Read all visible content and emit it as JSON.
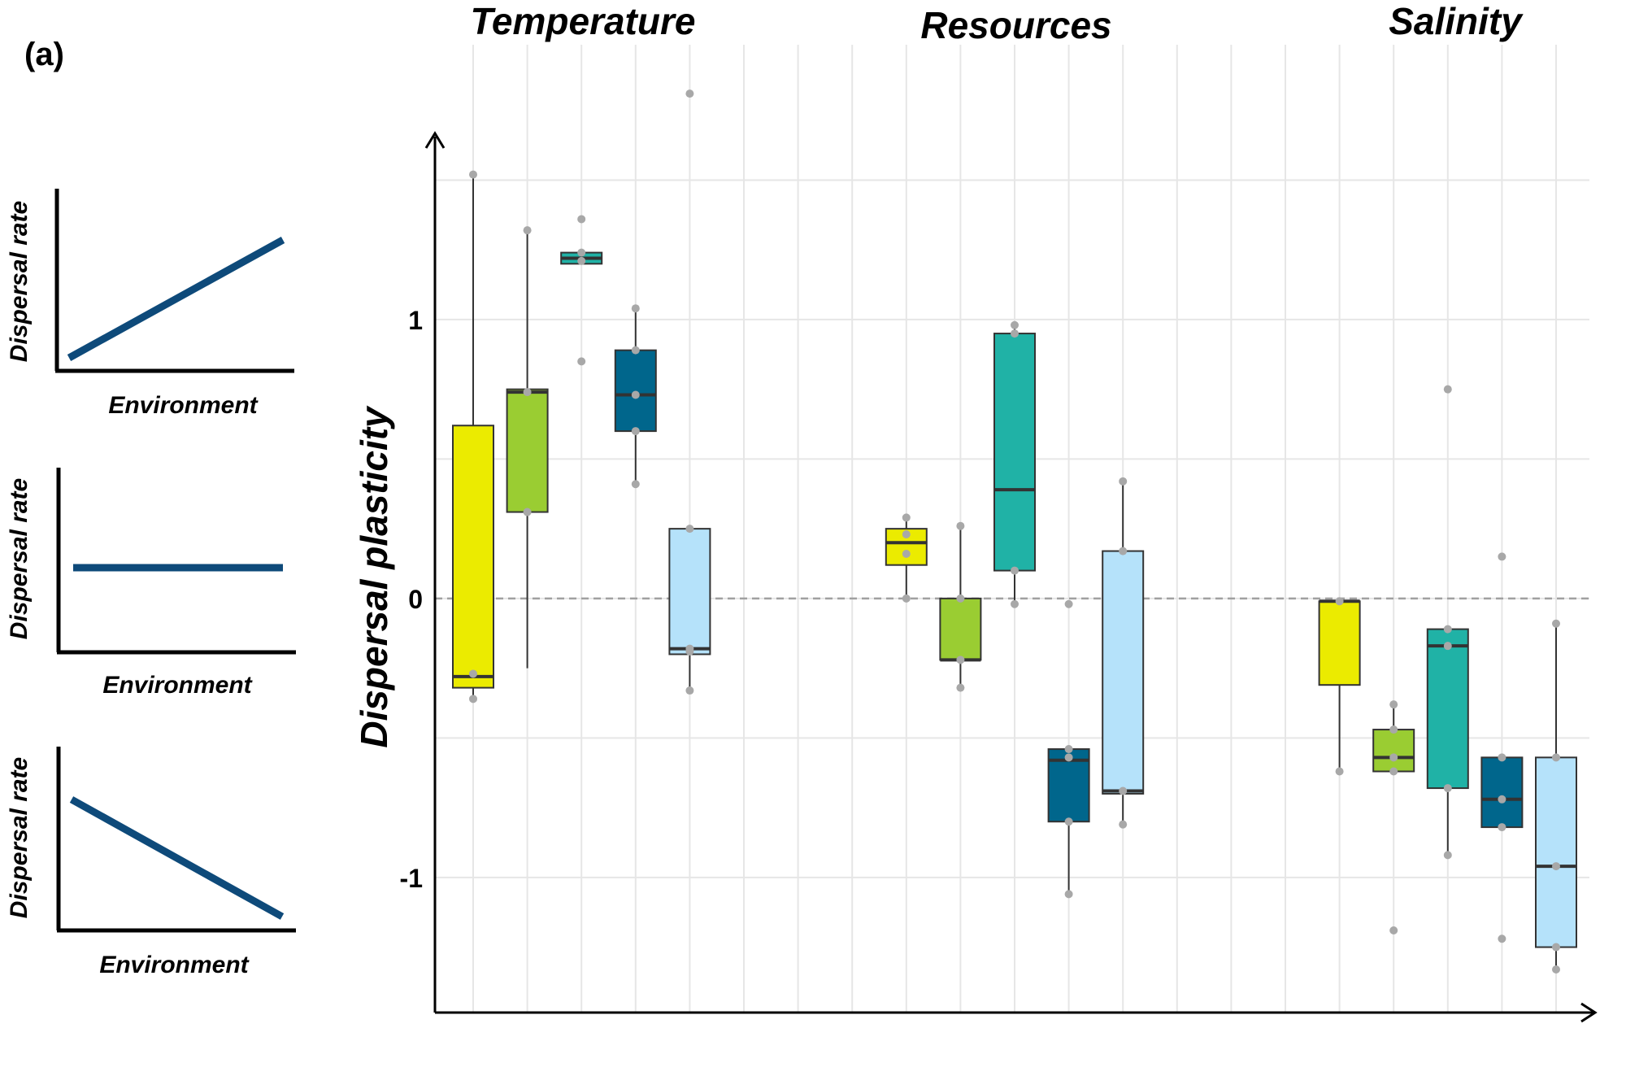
{
  "panel_label": "(a)",
  "insets": [
    {
      "ylabel": "Dispersal rate",
      "xlabel": "Environment",
      "trend": "increasing"
    },
    {
      "ylabel": "Dispersal rate",
      "xlabel": "Environment",
      "trend": "flat"
    },
    {
      "ylabel": "Dispersal rate",
      "xlabel": "Environment",
      "trend": "decreasing"
    }
  ],
  "colors": {
    "line": "#0e4a7a",
    "grid": "#e6e6e6",
    "zero_line": "#a0a0a0",
    "point": "#a8a8a8",
    "axis": "#000000"
  },
  "chart_data": {
    "type": "box",
    "ylabel": "Dispersal plasticity",
    "ylim": [
      -1.47,
      1.65
    ],
    "yticks": [
      1,
      0,
      -1
    ],
    "grid": true,
    "reference_line_y": 0,
    "groups": [
      "Temperature",
      "Resources",
      "Salinity"
    ],
    "series": [
      {
        "color": "#ebeb00"
      },
      {
        "color": "#9acd32"
      },
      {
        "color": "#20b2a6"
      },
      {
        "color": "#00668c"
      },
      {
        "color": "#b5e2fa"
      }
    ],
    "boxes": [
      {
        "group": "Temperature",
        "series": 0,
        "min": -0.35,
        "q1": -0.32,
        "median": -0.28,
        "q3": 0.62,
        "max": 1.51,
        "points": [
          -0.27,
          -0.36,
          1.52
        ]
      },
      {
        "group": "Temperature",
        "series": 1,
        "min": -0.25,
        "q1": 0.31,
        "median": 0.74,
        "q3": 0.75,
        "max": 1.32,
        "points": [
          0.31,
          0.74,
          1.32
        ]
      },
      {
        "group": "Temperature",
        "series": 2,
        "min": 1.2,
        "q1": 1.2,
        "median": 1.22,
        "q3": 1.24,
        "max": 1.24,
        "points": [
          0.85,
          1.21,
          1.24,
          1.36
        ]
      },
      {
        "group": "Temperature",
        "series": 3,
        "min": 0.41,
        "q1": 0.6,
        "median": 0.73,
        "q3": 0.89,
        "max": 1.04,
        "points": [
          0.41,
          0.6,
          0.73,
          0.89,
          1.04
        ]
      },
      {
        "group": "Temperature",
        "series": 4,
        "min": -0.33,
        "q1": -0.2,
        "median": -0.18,
        "q3": 0.25,
        "max": 0.25,
        "points": [
          -0.33,
          -0.19,
          -0.18,
          0.25,
          1.81
        ]
      },
      {
        "group": "Resources",
        "series": 0,
        "min": 0.0,
        "q1": 0.12,
        "median": 0.2,
        "q3": 0.25,
        "max": 0.29,
        "points": [
          0.0,
          0.16,
          0.23,
          0.29
        ]
      },
      {
        "group": "Resources",
        "series": 1,
        "min": -0.32,
        "q1": -0.22,
        "median": -0.22,
        "q3": 0.0,
        "max": 0.26,
        "points": [
          -0.32,
          -0.22,
          0.0,
          0.26
        ]
      },
      {
        "group": "Resources",
        "series": 2,
        "min": -0.02,
        "q1": 0.1,
        "median": 0.39,
        "q3": 0.95,
        "max": 0.98,
        "points": [
          -0.02,
          0.1,
          0.95,
          0.98
        ]
      },
      {
        "group": "Resources",
        "series": 3,
        "min": -1.06,
        "q1": -0.8,
        "median": -0.58,
        "q3": -0.54,
        "max": -0.54,
        "points": [
          -0.02,
          -0.54,
          -0.57,
          -0.8,
          -1.06
        ]
      },
      {
        "group": "Resources",
        "series": 4,
        "min": -0.81,
        "q1": -0.7,
        "median": -0.69,
        "q3": 0.17,
        "max": 0.42,
        "points": [
          -0.69,
          -0.81,
          0.17,
          0.42
        ]
      },
      {
        "group": "Salinity",
        "series": 0,
        "min": -0.62,
        "q1": -0.31,
        "median": -0.01,
        "q3": -0.01,
        "max": -0.01,
        "points": [
          -0.01,
          -0.62
        ]
      },
      {
        "group": "Salinity",
        "series": 1,
        "min": -0.62,
        "q1": -0.62,
        "median": -0.57,
        "q3": -0.47,
        "max": -0.38,
        "points": [
          -0.38,
          -0.47,
          -0.57,
          -0.62,
          -1.19
        ]
      },
      {
        "group": "Salinity",
        "series": 2,
        "min": -0.92,
        "q1": -0.68,
        "median": -0.17,
        "q3": -0.11,
        "max": -0.11,
        "points": [
          -0.11,
          -0.17,
          -0.68,
          -0.92,
          0.75
        ]
      },
      {
        "group": "Salinity",
        "series": 3,
        "min": -0.82,
        "q1": -0.82,
        "median": -0.72,
        "q3": -0.57,
        "max": -0.57,
        "points": [
          -0.57,
          -0.72,
          -0.82,
          -1.22,
          0.15
        ]
      },
      {
        "group": "Salinity",
        "series": 4,
        "min": -1.33,
        "q1": -1.25,
        "median": -0.96,
        "q3": -0.57,
        "max": -0.09,
        "points": [
          -0.09,
          -0.57,
          -0.96,
          -1.25,
          -1.33
        ]
      }
    ]
  }
}
